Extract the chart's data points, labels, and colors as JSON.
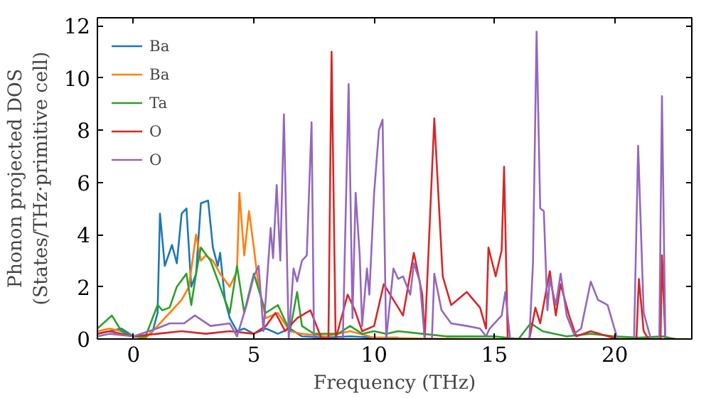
{
  "chart_data": {
    "type": "line",
    "xlabel": "Frequency (THz)",
    "ylabel": "Phonon projected DOS\n(States/THz·primitive cell)",
    "xlim": [
      -1.5,
      23.2
    ],
    "ylim": [
      0,
      12.3
    ],
    "xticks": [
      0,
      5,
      10,
      15,
      20
    ],
    "yticks": [
      0,
      2,
      4,
      6,
      8,
      10,
      12
    ],
    "grid": false,
    "legend": "top left",
    "series": [
      {
        "name": "Ba",
        "color": "#1f77b4",
        "x": [
          -1.5,
          -1,
          -0.5,
          0,
          0.5,
          0.8,
          1.0,
          1.1,
          1.3,
          1.6,
          1.8,
          2.0,
          2.2,
          2.4,
          2.6,
          2.8,
          3.1,
          3.3,
          3.5,
          3.6,
          3.8,
          4.0,
          4.3,
          4.6,
          5.0,
          5.5,
          6.0,
          6.5,
          7,
          8,
          9,
          10,
          11
        ],
        "values": [
          0.2,
          0.3,
          0.4,
          0.1,
          0.05,
          0.3,
          1.0,
          4.8,
          2.8,
          3.6,
          2.9,
          4.8,
          5.0,
          2.0,
          2.5,
          5.2,
          5.3,
          3.5,
          2.8,
          3.3,
          1.5,
          0.8,
          0.3,
          0.4,
          0.2,
          0.4,
          0.2,
          0.4,
          0.1,
          0.05,
          0.1,
          0.05,
          0.05
        ]
      },
      {
        "name": "Ba",
        "color": "#ff7f0e",
        "x": [
          -1.5,
          -1,
          -0.5,
          0,
          0.5,
          1.0,
          1.5,
          2.0,
          2.3,
          2.6,
          2.8,
          3.0,
          3.3,
          3.6,
          4.0,
          4.3,
          4.4,
          4.6,
          4.8,
          5.0,
          5.2,
          5.5,
          6.0,
          6.5,
          7,
          8,
          9,
          10,
          12,
          14,
          23
        ],
        "values": [
          0.3,
          0.4,
          0.3,
          0.1,
          0.05,
          0.5,
          1.0,
          1.5,
          2.0,
          4.0,
          3.0,
          3.2,
          3.0,
          2.5,
          2.0,
          2.6,
          5.6,
          3.2,
          4.9,
          3.5,
          2.0,
          0.8,
          1.0,
          0.3,
          0.2,
          0.1,
          0.3,
          0.05,
          0.02,
          0,
          0
        ]
      },
      {
        "name": "Ta",
        "color": "#2ca02c",
        "x": [
          -1.5,
          -0.9,
          -0.5,
          0,
          0.5,
          1.0,
          1.2,
          1.5,
          1.8,
          2.2,
          2.4,
          2.6,
          2.8,
          3.2,
          3.6,
          4.0,
          4.3,
          4.6,
          5.0,
          5.5,
          6.0,
          6.5,
          6.8,
          7.0,
          7.5,
          8.5,
          9.0,
          9.5,
          10.0,
          10.5,
          11.0,
          12,
          13,
          15,
          16,
          16.5,
          17,
          17.5,
          18,
          19,
          20,
          21,
          22,
          22.5
        ],
        "values": [
          0.4,
          0.9,
          0.3,
          0.1,
          0.1,
          1.3,
          1.1,
          1.2,
          2.0,
          2.5,
          1.3,
          2.5,
          3.5,
          3.0,
          2.0,
          1.0,
          2.8,
          1.0,
          2.5,
          1.0,
          1.3,
          0.3,
          1.8,
          0.5,
          0.2,
          0.2,
          0.5,
          0.2,
          0.3,
          0.2,
          0.3,
          0.2,
          0.1,
          0.1,
          0,
          0.6,
          0.3,
          0.2,
          0.1,
          0.2,
          0.1,
          0.05,
          0.1,
          0
        ]
      },
      {
        "name": "O",
        "color": "#d62728",
        "x": [
          -1.5,
          -1,
          0,
          1,
          2,
          3,
          4,
          5,
          5.5,
          5.9,
          6.3,
          6.8,
          7.35,
          7.8,
          8.1,
          8.23,
          8.4,
          8.9,
          9.2,
          9.5,
          10.0,
          10.4,
          10.8,
          11.2,
          11.65,
          12.0,
          12.1,
          12.5,
          12.85,
          13.2,
          13.85,
          14.4,
          14.65,
          14.75,
          15.05,
          15.3,
          15.4,
          15.55,
          16.45,
          16.7,
          16.9,
          17.3,
          17.55,
          17.75,
          18.1,
          18.4,
          19.0,
          20.1,
          20.9,
          21.0,
          21.2,
          21.4,
          21.9,
          21.96,
          22.1,
          22.5
        ],
        "values": [
          0.2,
          0.3,
          0.1,
          0.2,
          0.3,
          0.2,
          0.3,
          0.2,
          0.5,
          1.0,
          0.3,
          0.8,
          1.1,
          0.05,
          0,
          11.0,
          0,
          1.7,
          1.1,
          0.3,
          0.5,
          2.1,
          1.5,
          0.9,
          3.3,
          1.7,
          0,
          8.45,
          2.4,
          1.3,
          1.8,
          1.2,
          0.4,
          3.5,
          2.4,
          3.4,
          6.6,
          0,
          0,
          1.2,
          0.6,
          2.6,
          0.9,
          2.1,
          0.9,
          0.1,
          0.3,
          0,
          0,
          2.3,
          0.3,
          0,
          0,
          3.2,
          0,
          0
        ]
      },
      {
        "name": "O",
        "color": "#9467bd",
        "x": [
          -1.5,
          -1,
          0,
          0.97,
          1.5,
          2.1,
          2.55,
          3.2,
          4.0,
          4.3,
          4.7,
          5.0,
          5.2,
          5.4,
          5.7,
          5.8,
          5.95,
          6.1,
          6.25,
          6.45,
          6.65,
          6.8,
          7.0,
          7.2,
          7.4,
          7.5,
          8.7,
          8.94,
          9.1,
          9.23,
          9.4,
          9.5,
          9.7,
          9.8,
          10.0,
          10.2,
          10.35,
          10.5,
          10.8,
          11.0,
          11.2,
          11.5,
          11.65,
          11.9,
          12.1,
          12.4,
          12.5,
          12.8,
          13.2,
          13.85,
          14.4,
          14.65,
          14.8,
          15.3,
          15.45,
          15.65,
          16.45,
          16.6,
          16.75,
          16.9,
          17.05,
          17.2,
          17.3,
          17.55,
          17.75,
          18.0,
          18.3,
          18.6,
          19.0,
          19.3,
          19.7,
          20.05,
          20.1,
          20.8,
          20.97,
          21.2,
          21.5,
          21.85,
          21.96,
          22.1,
          22.5
        ],
        "values": [
          0.1,
          0.2,
          0.1,
          0.4,
          0.6,
          0.6,
          0.9,
          0.5,
          0.6,
          0.1,
          1.3,
          2.4,
          2.8,
          0.3,
          4.25,
          3.1,
          5.9,
          3.0,
          8.6,
          0,
          2.7,
          2.2,
          3.0,
          3.2,
          8.3,
          0,
          0,
          9.76,
          0.8,
          5.6,
          3.2,
          0.5,
          2.7,
          1.7,
          5.6,
          8.0,
          8.4,
          0,
          2.7,
          2.3,
          2.4,
          1.7,
          2.9,
          2.2,
          0,
          0,
          2.5,
          1.1,
          0.6,
          0.5,
          0.4,
          0.1,
          0.4,
          0.9,
          1.8,
          0,
          0,
          2.9,
          11.77,
          5.0,
          4.9,
          1.1,
          2.3,
          1.3,
          2.5,
          0.9,
          0.2,
          0.4,
          2.2,
          1.5,
          1.3,
          0.2,
          0,
          0,
          7.4,
          1.0,
          0,
          0,
          9.3,
          0,
          0
        ]
      }
    ]
  }
}
